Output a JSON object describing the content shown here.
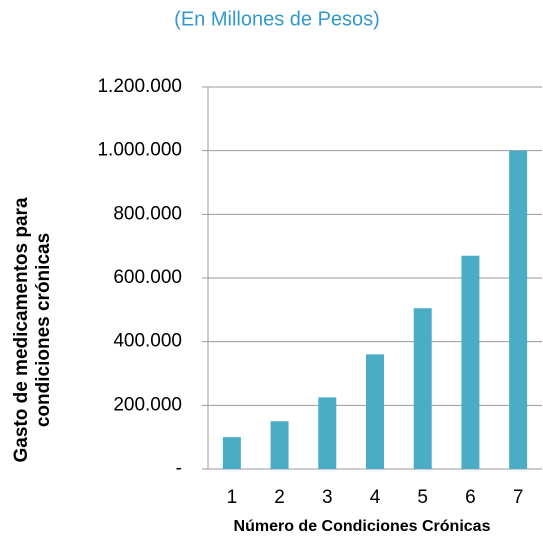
{
  "chart_data": {
    "type": "bar",
    "subtitle": "(En Millones de Pesos)",
    "y_label": [
      "Gasto de medicamentos para",
      "condiciones crónicas"
    ],
    "x_label": "Número de Condiciones Crónicas",
    "categories": [
      "1",
      "2",
      "3",
      "4",
      "5",
      "6",
      "7"
    ],
    "values": [
      100000,
      150000,
      225000,
      360000,
      505000,
      670000,
      1000000
    ],
    "color": "#4bacc6",
    "ylim": [
      0,
      1200000
    ],
    "yticks": [
      {
        "value": 0,
        "label": "-"
      },
      {
        "value": 200000,
        "label": "200.000"
      },
      {
        "value": 400000,
        "label": "400.000"
      },
      {
        "value": 600000,
        "label": "600.000"
      },
      {
        "value": 800000,
        "label": "800.000"
      },
      {
        "value": 1000000,
        "label": "1.000.000"
      },
      {
        "value": 1200000,
        "label": "1.200.000"
      }
    ],
    "grid": true
  }
}
